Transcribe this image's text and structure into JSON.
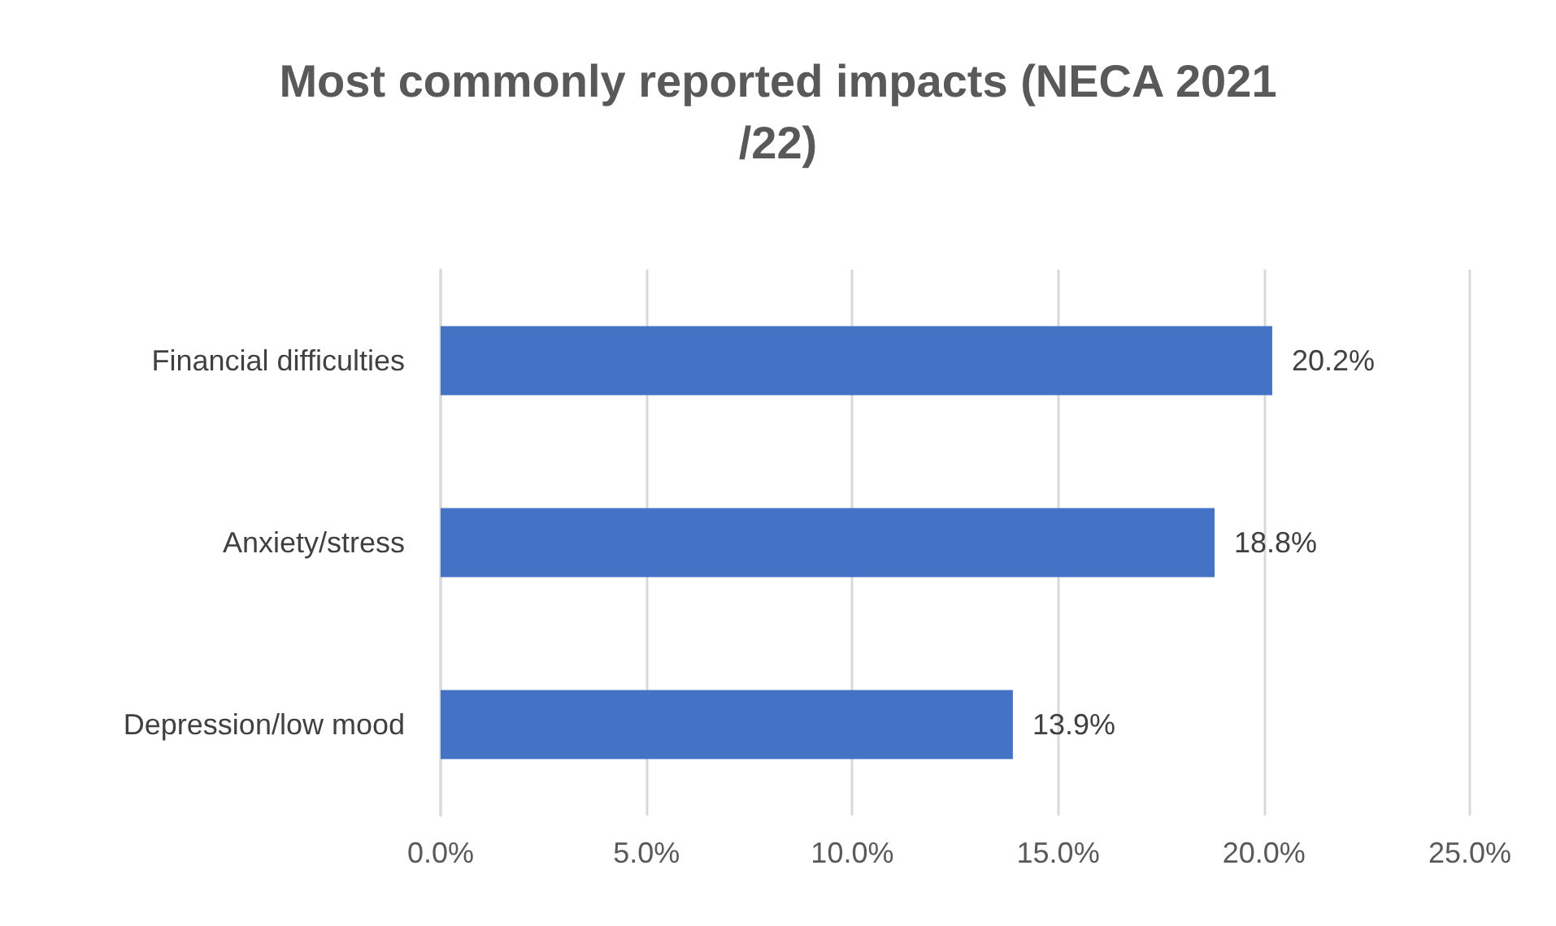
{
  "chart_data": {
    "type": "bar",
    "orientation": "horizontal",
    "title": "Most commonly reported impacts (NECA 2021/22)",
    "categories": [
      "Financial difficulties",
      "Anxiety/stress",
      "Depression/low mood"
    ],
    "values": [
      20.2,
      18.8,
      13.9
    ],
    "value_labels": [
      "20.2%",
      "18.8%",
      "13.9%"
    ],
    "color": "#4472c4",
    "xlim": [
      0,
      25
    ],
    "xticks": [
      {
        "value": 0,
        "label": "0.0%"
      },
      {
        "value": 5,
        "label": "5.0%"
      },
      {
        "value": 10,
        "label": "10.0%"
      },
      {
        "value": 15,
        "label": "15.0%"
      },
      {
        "value": 20,
        "label": "20.0%"
      },
      {
        "value": 25,
        "label": "25.0%"
      }
    ],
    "grid": "x"
  }
}
